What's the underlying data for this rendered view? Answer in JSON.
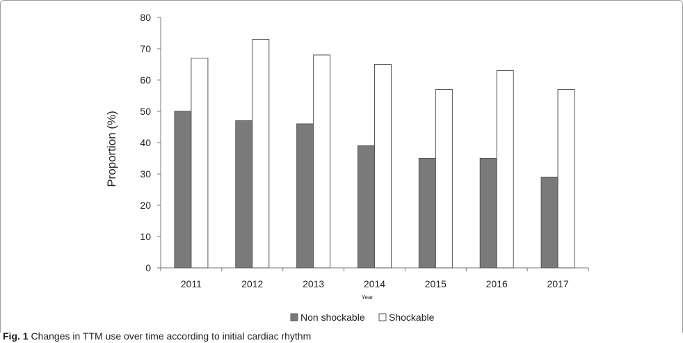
{
  "chart_data": {
    "type": "bar",
    "categories": [
      "2011",
      "2012",
      "2013",
      "2014",
      "2015",
      "2016",
      "2017"
    ],
    "series": [
      {
        "name": "Non shockable",
        "values": [
          50,
          47,
          46,
          39,
          35,
          35,
          29
        ],
        "color": "#7a7a7a"
      },
      {
        "name": "Shockable",
        "values": [
          67,
          73,
          68,
          65,
          57,
          63,
          57
        ],
        "color": "#ffffff"
      }
    ],
    "xlabel": "Year",
    "ylabel": "Proportion (%)",
    "ylim": [
      0,
      80
    ],
    "yticks": [
      0,
      10,
      20,
      30,
      40,
      50,
      60,
      70,
      80
    ],
    "grid": false,
    "legend_position": "bottom"
  },
  "caption": {
    "prefix": "Fig. 1",
    "text": "Changes in TTM use over time according to initial cardiac rhythm"
  }
}
